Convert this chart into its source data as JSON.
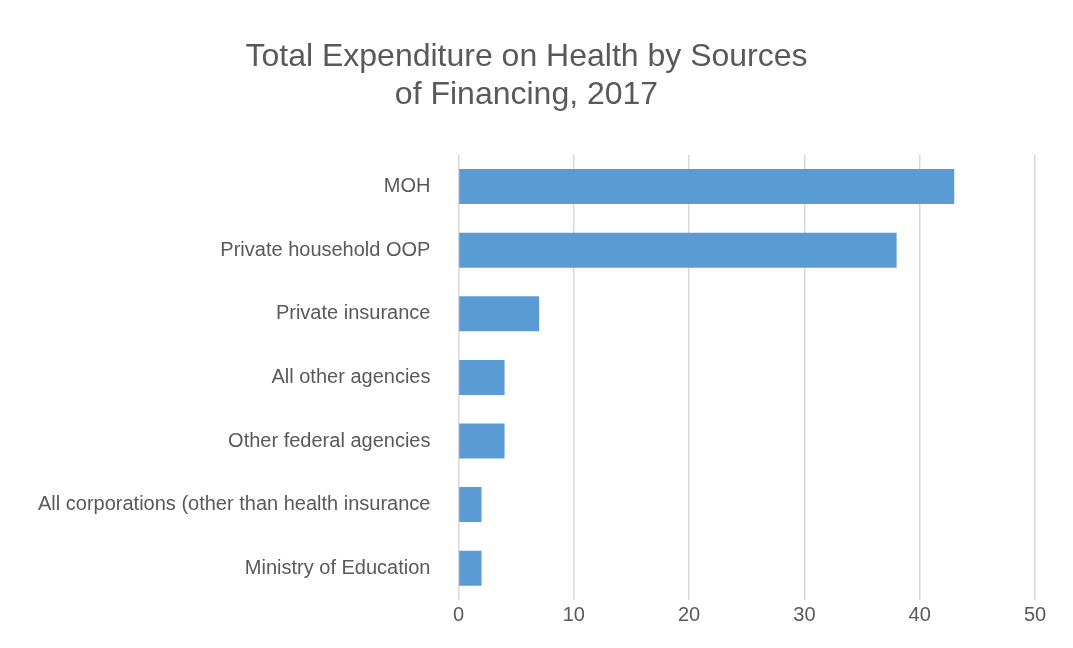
{
  "chart_data": {
    "type": "bar",
    "orientation": "horizontal",
    "title": "Total Expenditure on Health by Sources of Financing, 2017",
    "categories": [
      "MOH",
      "Private household OOP",
      "Private insurance",
      "All other agencies",
      "Other federal agencies",
      "All corporations (other than health insurance",
      "Ministry of Education"
    ],
    "values": [
      43,
      38,
      7,
      4,
      4,
      2,
      2
    ],
    "color": "#5b9bd5",
    "xlim": [
      0,
      50
    ],
    "xticks": [
      0,
      10,
      20,
      30,
      40,
      50
    ],
    "grid": "x"
  }
}
